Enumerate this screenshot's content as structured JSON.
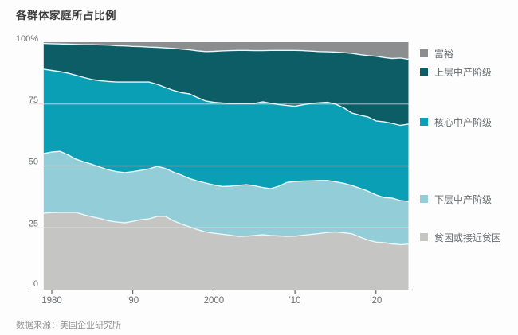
{
  "page": {
    "background": "#fdfdfd"
  },
  "chart_data": {
    "type": "area",
    "stacked": true,
    "title": "各群体家庭所占比例",
    "source": "数据来源：美国企业研究所",
    "xlabel": "",
    "ylabel": "",
    "ylim": [
      0,
      100
    ],
    "grid": "horizontal",
    "legend_position": "right",
    "x": [
      1979,
      1980,
      1981,
      1982,
      1983,
      1984,
      1985,
      1986,
      1987,
      1988,
      1989,
      1990,
      1991,
      1992,
      1993,
      1994,
      1995,
      1996,
      1997,
      1998,
      1999,
      2000,
      2001,
      2002,
      2003,
      2004,
      2005,
      2006,
      2007,
      2008,
      2009,
      2010,
      2011,
      2012,
      2013,
      2014,
      2015,
      2016,
      2017,
      2018,
      2019,
      2020,
      2021,
      2022,
      2023,
      2024
    ],
    "xticks": [
      {
        "value": 1980,
        "label": "1980"
      },
      {
        "value": 1990,
        "label": "'90"
      },
      {
        "value": 2000,
        "label": "2000"
      },
      {
        "value": 2010,
        "label": "'10"
      },
      {
        "value": 2020,
        "label": "'20"
      }
    ],
    "yticks": [
      {
        "value": 100,
        "label": "100%"
      },
      {
        "value": 75,
        "label": "75"
      },
      {
        "value": 50,
        "label": "50"
      },
      {
        "value": 25,
        "label": "25"
      },
      {
        "value": 0,
        "label": "0"
      }
    ],
    "series": [
      {
        "name": "贫困或接近贫困",
        "color": "#c5c6c4",
        "values": [
          30.9,
          31.1,
          31.2,
          31.2,
          31.2,
          30.2,
          29.4,
          28.7,
          27.8,
          27.3,
          27.0,
          27.6,
          28.3,
          28.6,
          29.6,
          29.6,
          27.8,
          26.5,
          25.4,
          24.2,
          23.3,
          22.8,
          22.4,
          22.0,
          21.5,
          21.6,
          21.9,
          22.2,
          21.9,
          21.7,
          21.5,
          21.6,
          22.0,
          22.3,
          22.7,
          23.1,
          23.3,
          23.0,
          22.6,
          21.3,
          20.1,
          19.2,
          19.0,
          18.5,
          18.2,
          18.4
        ]
      },
      {
        "name": "下层中产阶级",
        "color": "#92cdd8",
        "values": [
          24.1,
          24.5,
          24.7,
          23.3,
          21.5,
          21.4,
          21.2,
          20.8,
          20.6,
          20.4,
          20.3,
          20.1,
          19.9,
          20.2,
          20.2,
          19.4,
          19.7,
          19.8,
          19.5,
          19.7,
          19.8,
          19.5,
          19.3,
          19.8,
          20.6,
          20.8,
          20.1,
          19.1,
          18.9,
          20.1,
          21.8,
          22.1,
          21.9,
          21.7,
          21.4,
          21.0,
          20.3,
          20.0,
          19.5,
          19.7,
          19.7,
          19.1,
          18.2,
          18.5,
          17.8,
          17.3
        ]
      },
      {
        "name": "核心中产阶级",
        "color": "#0b9fb5",
        "values": [
          34.1,
          33.0,
          32.2,
          33.0,
          33.9,
          34.1,
          34.3,
          34.9,
          35.7,
          36.2,
          36.6,
          36.2,
          35.7,
          35.1,
          33.2,
          32.7,
          33.0,
          33.3,
          34.2,
          33.7,
          33.1,
          33.4,
          33.7,
          33.4,
          33.1,
          32.8,
          33.2,
          34.6,
          34.5,
          33.0,
          31.1,
          30.4,
          30.8,
          31.2,
          31.4,
          31.6,
          31.4,
          30.5,
          29.3,
          29.5,
          30.0,
          29.9,
          30.6,
          30.2,
          30.4,
          31.2
        ]
      },
      {
        "name": "上层中产阶级",
        "color": "#0d5d66",
        "values": [
          10.4,
          10.8,
          11.2,
          11.7,
          12.5,
          13.3,
          14.1,
          14.5,
          14.7,
          14.7,
          14.6,
          14.4,
          14.3,
          14.1,
          14.9,
          16.0,
          17.0,
          17.6,
          17.8,
          18.9,
          20.0,
          20.6,
          21.1,
          21.4,
          21.5,
          21.5,
          21.4,
          20.7,
          21.4,
          21.9,
          22.3,
          22.6,
          21.9,
          21.2,
          20.7,
          20.4,
          21.0,
          22.3,
          24.1,
          24.5,
          24.8,
          26.1,
          26.0,
          26.2,
          27.2,
          26.2
        ]
      },
      {
        "name": "富裕",
        "color": "#8b8d8f",
        "values": [
          0.5,
          0.6,
          0.7,
          0.8,
          0.9,
          1.0,
          1.0,
          1.1,
          1.2,
          1.4,
          1.5,
          1.7,
          1.8,
          2.0,
          2.1,
          2.3,
          2.5,
          2.8,
          3.1,
          3.5,
          3.8,
          3.7,
          3.5,
          3.4,
          3.3,
          3.3,
          3.4,
          3.4,
          3.3,
          3.3,
          3.3,
          3.3,
          3.4,
          3.6,
          3.8,
          3.9,
          4.0,
          4.2,
          4.5,
          5.0,
          5.4,
          5.7,
          6.2,
          6.6,
          6.4,
          6.9
        ]
      }
    ],
    "style_colors": {
      "tick_text": "#6e7072",
      "axis_line": "#4c4c4c",
      "grid_inside_plot": "rgba(255,255,255,0.5)",
      "grid_stub_outside": "#e0e0e0",
      "band_separator_line": "#eaf7f8",
      "title_text": "#3d3d3d",
      "legend_text": "#6a6c6e",
      "source_text": "#929292"
    }
  }
}
